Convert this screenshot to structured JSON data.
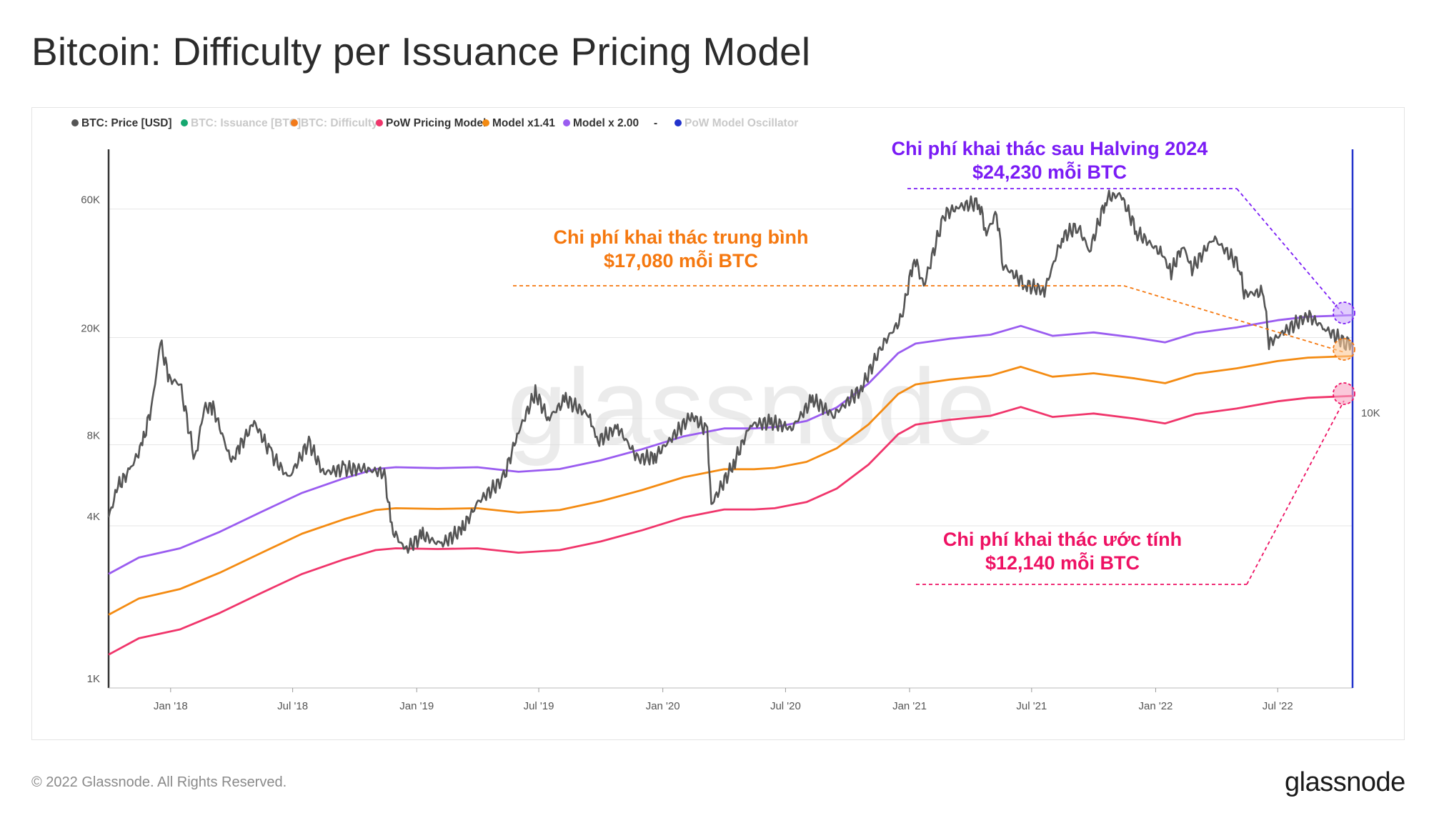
{
  "page": {
    "title": "Bitcoin: Difficulty per Issuance Pricing Model",
    "copyright": "© 2022 Glassnode. All Rights Reserved.",
    "logo_text": "glassnode",
    "watermark_text": "glassnode"
  },
  "legend": [
    {
      "label": "BTC: Price [USD]",
      "color": "#555555",
      "active": true
    },
    {
      "label": "BTC: Issuance [BTC]",
      "color": "#16a870",
      "active": false
    },
    {
      "label": "BTC: Difficulty",
      "color": "#f27a1a",
      "active": false
    },
    {
      "label": "PoW Pricing Model",
      "color": "#f0356b",
      "active": true
    },
    {
      "label": "Model x1.41",
      "color": "#f48b12",
      "active": true
    },
    {
      "label": "Model x 2.00",
      "color": "#9a5cf0",
      "active": true
    },
    {
      "label": "-",
      "color": "#555555",
      "active": true,
      "no_dot": true
    },
    {
      "label": "PoW Model Oscillator",
      "color": "#2233cc",
      "active": false
    }
  ],
  "annotations": {
    "halving": {
      "line1": "Chi phí khai thác sau Halving 2024",
      "line2": "$24,230 mỗi BTC",
      "color": "#7a1cf5"
    },
    "average": {
      "line1": "Chi phí khai thác trung bình",
      "line2": "$17,080 mỗi BTC",
      "color": "#f5780f"
    },
    "estimated": {
      "line1": "Chi phí khai thác ước tính",
      "line2": "$12,140 mỗi BTC",
      "color": "#ee1163"
    }
  },
  "chart_data": {
    "type": "line",
    "title": "Bitcoin: Difficulty per Issuance Pricing Model",
    "y_scale": "log",
    "ylim": [
      1000,
      100000
    ],
    "xlim": [
      "2017-10-01",
      "2022-10-20"
    ],
    "y_ticks_left": [
      {
        "value": 1000,
        "label": "1K"
      },
      {
        "value": 4000,
        "label": "4K"
      },
      {
        "value": 8000,
        "label": "8K"
      },
      {
        "value": 20000,
        "label": "20K"
      },
      {
        "value": 60000,
        "label": "60K"
      }
    ],
    "y_right_label": "10K",
    "x_ticks": [
      {
        "date": "2018-01-01",
        "label": "Jan '18"
      },
      {
        "date": "2018-07-01",
        "label": "Jul '18"
      },
      {
        "date": "2019-01-01",
        "label": "Jan '19"
      },
      {
        "date": "2019-07-01",
        "label": "Jul '19"
      },
      {
        "date": "2020-01-01",
        "label": "Jan '20"
      },
      {
        "date": "2020-07-01",
        "label": "Jul '20"
      },
      {
        "date": "2021-01-01",
        "label": "Jan '21"
      },
      {
        "date": "2021-07-01",
        "label": "Jul '21"
      },
      {
        "date": "2022-01-01",
        "label": "Jan '22"
      },
      {
        "date": "2022-07-01",
        "label": "Jul '22"
      }
    ],
    "reference_levels": {
      "halving_cost": 24230,
      "average_cost": 17080,
      "estimated_cost": 12140
    },
    "series": [
      {
        "name": "BTC: Price [USD]",
        "color": "#555555",
        "points": [
          [
            "2017-10-01",
            4300
          ],
          [
            "2017-10-15",
            5600
          ],
          [
            "2017-11-01",
            6400
          ],
          [
            "2017-11-20",
            8000
          ],
          [
            "2017-12-05",
            11500
          ],
          [
            "2017-12-17",
            19200
          ],
          [
            "2017-12-30",
            14000
          ],
          [
            "2018-01-15",
            13500
          ],
          [
            "2018-02-06",
            7000
          ],
          [
            "2018-02-20",
            11000
          ],
          [
            "2018-03-05",
            11000
          ],
          [
            "2018-04-01",
            6900
          ],
          [
            "2018-04-15",
            8000
          ],
          [
            "2018-05-05",
            9700
          ],
          [
            "2018-05-30",
            7400
          ],
          [
            "2018-06-25",
            6000
          ],
          [
            "2018-07-25",
            8200
          ],
          [
            "2018-08-15",
            6300
          ],
          [
            "2018-09-15",
            6500
          ],
          [
            "2018-10-15",
            6500
          ],
          [
            "2018-11-14",
            6300
          ],
          [
            "2018-11-25",
            3900
          ],
          [
            "2018-12-15",
            3250
          ],
          [
            "2019-01-10",
            3700
          ],
          [
            "2019-02-05",
            3400
          ],
          [
            "2019-03-10",
            3900
          ],
          [
            "2019-04-02",
            4900
          ],
          [
            "2019-05-10",
            6000
          ],
          [
            "2019-05-30",
            8700
          ],
          [
            "2019-06-26",
            12500
          ],
          [
            "2019-07-15",
            10000
          ],
          [
            "2019-08-10",
            11800
          ],
          [
            "2019-09-15",
            10200
          ],
          [
            "2019-09-25",
            8200
          ],
          [
            "2019-10-26",
            9300
          ],
          [
            "2019-11-25",
            7100
          ],
          [
            "2019-12-20",
            7200
          ],
          [
            "2020-02-13",
            10300
          ],
          [
            "2020-03-07",
            9000
          ],
          [
            "2020-03-13",
            4800
          ],
          [
            "2020-04-15",
            6800
          ],
          [
            "2020-05-10",
            9500
          ],
          [
            "2020-06-10",
            9700
          ],
          [
            "2020-07-10",
            9200
          ],
          [
            "2020-08-10",
            11800
          ],
          [
            "2020-09-10",
            10300
          ],
          [
            "2020-10-21",
            12900
          ],
          [
            "2020-11-20",
            18500
          ],
          [
            "2020-12-20",
            23500
          ],
          [
            "2021-01-08",
            40000
          ],
          [
            "2021-01-22",
            31000
          ],
          [
            "2021-02-21",
            57000
          ],
          [
            "2021-03-13",
            61000
          ],
          [
            "2021-04-14",
            63500
          ],
          [
            "2021-04-25",
            49000
          ],
          [
            "2021-05-10",
            58000
          ],
          [
            "2021-05-20",
            37000
          ],
          [
            "2021-06-22",
            31500
          ],
          [
            "2021-07-20",
            29800
          ],
          [
            "2021-08-15",
            47000
          ],
          [
            "2021-09-07",
            52000
          ],
          [
            "2021-09-25",
            42000
          ],
          [
            "2021-10-20",
            66000
          ],
          [
            "2021-11-10",
            68000
          ],
          [
            "2021-12-05",
            49000
          ],
          [
            "2022-01-10",
            41000
          ],
          [
            "2022-01-24",
            35000
          ],
          [
            "2022-02-10",
            44000
          ],
          [
            "2022-02-24",
            36000
          ],
          [
            "2022-03-28",
            47000
          ],
          [
            "2022-05-05",
            37000
          ],
          [
            "2022-05-12",
            29000
          ],
          [
            "2022-06-10",
            29500
          ],
          [
            "2022-06-18",
            19000
          ],
          [
            "2022-07-10",
            21000
          ],
          [
            "2022-08-15",
            24200
          ],
          [
            "2022-09-10",
            21500
          ],
          [
            "2022-10-10",
            19100
          ],
          [
            "2022-10-20",
            19200
          ]
        ]
      },
      {
        "name": "Model x 2.00",
        "color": "#9a5cf0",
        "points": [
          [
            "2017-10-01",
            2650
          ],
          [
            "2017-11-15",
            3050
          ],
          [
            "2018-01-15",
            3300
          ],
          [
            "2018-03-15",
            3800
          ],
          [
            "2018-05-15",
            4500
          ],
          [
            "2018-07-15",
            5300
          ],
          [
            "2018-09-15",
            6000
          ],
          [
            "2018-11-01",
            6500
          ],
          [
            "2018-12-01",
            6600
          ],
          [
            "2019-02-01",
            6550
          ],
          [
            "2019-04-01",
            6600
          ],
          [
            "2019-06-01",
            6350
          ],
          [
            "2019-08-01",
            6500
          ],
          [
            "2019-10-01",
            7000
          ],
          [
            "2019-12-01",
            7700
          ],
          [
            "2020-02-01",
            8600
          ],
          [
            "2020-04-01",
            9200
          ],
          [
            "2020-05-15",
            9200
          ],
          [
            "2020-06-15",
            9300
          ],
          [
            "2020-08-01",
            9800
          ],
          [
            "2020-09-15",
            11000
          ],
          [
            "2020-11-01",
            13500
          ],
          [
            "2020-12-15",
            17500
          ],
          [
            "2021-01-10",
            19000
          ],
          [
            "2021-03-01",
            19800
          ],
          [
            "2021-05-01",
            20500
          ],
          [
            "2021-06-15",
            22100
          ],
          [
            "2021-08-01",
            20300
          ],
          [
            "2021-10-01",
            20900
          ],
          [
            "2021-12-01",
            20000
          ],
          [
            "2022-01-15",
            19200
          ],
          [
            "2022-03-01",
            20800
          ],
          [
            "2022-05-01",
            21800
          ],
          [
            "2022-07-01",
            23200
          ],
          [
            "2022-08-15",
            23900
          ],
          [
            "2022-10-20",
            24230
          ]
        ]
      },
      {
        "name": "Model x1.41",
        "color": "#f48b12",
        "points": [
          [
            "2017-10-01",
            1870
          ],
          [
            "2017-11-15",
            2150
          ],
          [
            "2018-01-15",
            2330
          ],
          [
            "2018-03-15",
            2680
          ],
          [
            "2018-05-15",
            3170
          ],
          [
            "2018-07-15",
            3740
          ],
          [
            "2018-09-15",
            4230
          ],
          [
            "2018-11-01",
            4580
          ],
          [
            "2018-12-01",
            4650
          ],
          [
            "2019-02-01",
            4620
          ],
          [
            "2019-04-01",
            4650
          ],
          [
            "2019-06-01",
            4480
          ],
          [
            "2019-08-01",
            4580
          ],
          [
            "2019-10-01",
            4940
          ],
          [
            "2019-12-01",
            5430
          ],
          [
            "2020-02-01",
            6060
          ],
          [
            "2020-04-01",
            6490
          ],
          [
            "2020-05-15",
            6490
          ],
          [
            "2020-06-15",
            6560
          ],
          [
            "2020-08-01",
            6910
          ],
          [
            "2020-09-15",
            7760
          ],
          [
            "2020-11-01",
            9520
          ],
          [
            "2020-12-15",
            12340
          ],
          [
            "2021-01-10",
            13400
          ],
          [
            "2021-03-01",
            13960
          ],
          [
            "2021-05-01",
            14450
          ],
          [
            "2021-06-15",
            15580
          ],
          [
            "2021-08-01",
            14310
          ],
          [
            "2021-10-01",
            14740
          ],
          [
            "2021-12-01",
            14100
          ],
          [
            "2022-01-15",
            13540
          ],
          [
            "2022-03-01",
            14660
          ],
          [
            "2022-05-01",
            15370
          ],
          [
            "2022-07-01",
            16360
          ],
          [
            "2022-08-15",
            16850
          ],
          [
            "2022-10-20",
            17080
          ]
        ]
      },
      {
        "name": "PoW Pricing Model",
        "color": "#f0356b",
        "points": [
          [
            "2017-10-01",
            1330
          ],
          [
            "2017-11-15",
            1530
          ],
          [
            "2018-01-15",
            1650
          ],
          [
            "2018-03-15",
            1900
          ],
          [
            "2018-05-15",
            2250
          ],
          [
            "2018-07-15",
            2650
          ],
          [
            "2018-09-15",
            3000
          ],
          [
            "2018-11-01",
            3250
          ],
          [
            "2018-12-01",
            3300
          ],
          [
            "2019-02-01",
            3280
          ],
          [
            "2019-04-01",
            3300
          ],
          [
            "2019-06-01",
            3180
          ],
          [
            "2019-08-01",
            3250
          ],
          [
            "2019-10-01",
            3500
          ],
          [
            "2019-12-01",
            3850
          ],
          [
            "2020-02-01",
            4300
          ],
          [
            "2020-04-01",
            4600
          ],
          [
            "2020-05-15",
            4600
          ],
          [
            "2020-06-15",
            4650
          ],
          [
            "2020-08-01",
            4900
          ],
          [
            "2020-09-15",
            5500
          ],
          [
            "2020-11-01",
            6750
          ],
          [
            "2020-12-15",
            8750
          ],
          [
            "2021-01-10",
            9500
          ],
          [
            "2021-03-01",
            9900
          ],
          [
            "2021-05-01",
            10250
          ],
          [
            "2021-06-15",
            11050
          ],
          [
            "2021-08-01",
            10150
          ],
          [
            "2021-10-01",
            10450
          ],
          [
            "2021-12-01",
            10000
          ],
          [
            "2022-01-15",
            9600
          ],
          [
            "2022-03-01",
            10400
          ],
          [
            "2022-05-01",
            10900
          ],
          [
            "2022-07-01",
            11600
          ],
          [
            "2022-08-15",
            11950
          ],
          [
            "2022-10-20",
            12140
          ]
        ]
      }
    ]
  }
}
